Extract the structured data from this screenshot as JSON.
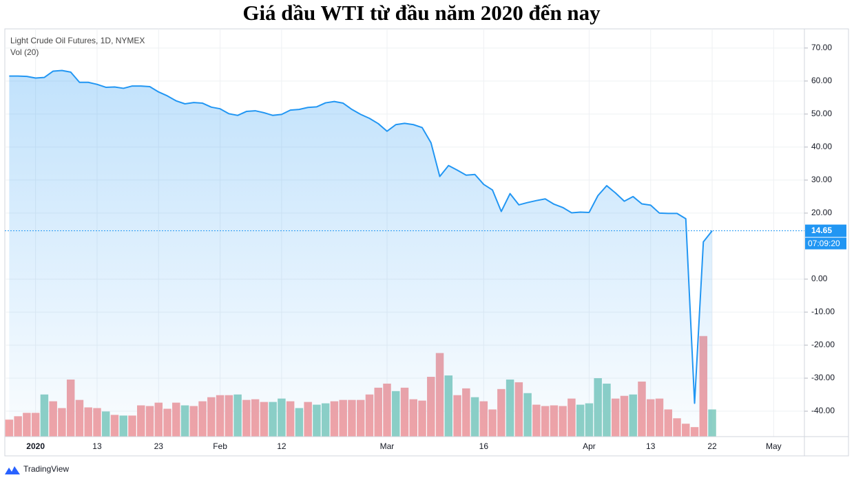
{
  "chart_data": {
    "type": "line",
    "title": "Giá dầu WTI từ đầu năm 2020 đến nay",
    "legend_title": "Light Crude Oil Futures, 1D, NYMEX",
    "volume_label": "Vol (20)",
    "brand": "TradingView",
    "categories": [
      null,
      null,
      null,
      "2020",
      null,
      null,
      null,
      null,
      null,
      null,
      "13",
      null,
      null,
      null,
      null,
      null,
      null,
      "23",
      null,
      null,
      null,
      null,
      null,
      null,
      "Feb",
      null,
      null,
      null,
      null,
      null,
      null,
      "12",
      null,
      null,
      null,
      null,
      null,
      null,
      null,
      null,
      null,
      null,
      null,
      "Mar",
      null,
      null,
      null,
      null,
      null,
      null,
      null,
      null,
      null,
      null,
      "16",
      null,
      null,
      null,
      null,
      null,
      null,
      null,
      null,
      null,
      null,
      null,
      "Apr",
      null,
      null,
      null,
      null,
      null,
      null,
      "13",
      null,
      null,
      null,
      null,
      null,
      null,
      "22",
      null,
      null,
      null,
      null,
      null,
      null,
      "May",
      null,
      null,
      null
    ],
    "series": [
      {
        "name": "Light Crude Oil Futures",
        "color": "#2196f3",
        "values": [
          61.5,
          61.5,
          61.4,
          60.9,
          61.1,
          63.0,
          63.2,
          62.7,
          59.6,
          59.6,
          59.0,
          58.1,
          58.2,
          57.8,
          58.5,
          58.5,
          58.3,
          56.7,
          55.5,
          54.0,
          53.1,
          53.5,
          53.3,
          52.1,
          51.6,
          50.1,
          49.6,
          50.8,
          51.0,
          50.4,
          49.6,
          49.9,
          51.2,
          51.4,
          52.0,
          52.2,
          53.4,
          53.8,
          53.3,
          51.4,
          49.9,
          48.7,
          47.1,
          44.8,
          46.8,
          47.2,
          46.8,
          45.9,
          41.3,
          31.1,
          34.4,
          33.0,
          31.5,
          31.7,
          28.7,
          27.0,
          20.5,
          25.9,
          22.5,
          23.2,
          23.8,
          24.3,
          22.7,
          21.7,
          20.1,
          20.3,
          20.2,
          25.3,
          28.3,
          26.1,
          23.6,
          25.0,
          22.8,
          22.4,
          20.0,
          19.9,
          19.9,
          18.3,
          -37.6,
          11.3,
          14.65,
          null,
          null,
          null,
          null,
          null,
          null,
          null,
          null,
          null,
          null
        ]
      },
      {
        "name": "Vol (20)",
        "axis": "y2",
        "values": [
          25,
          30,
          35,
          35,
          62,
          52,
          42,
          84,
          54,
          43,
          42,
          37,
          32,
          31,
          31,
          46,
          45,
          50,
          41,
          50,
          46,
          45,
          52,
          58,
          61,
          61,
          62,
          54,
          55,
          51,
          51,
          56,
          52,
          42,
          51,
          47,
          49,
          52,
          54,
          54,
          54,
          62,
          72,
          78,
          67,
          72,
          55,
          53,
          88,
          123,
          90,
          61,
          71,
          58,
          52,
          40,
          70,
          84,
          80,
          64,
          47,
          45,
          46,
          45,
          56,
          47,
          49,
          86,
          78,
          56,
          60,
          62,
          81,
          55,
          56,
          40,
          27,
          19,
          14,
          148,
          40,
          null,
          null,
          null,
          null,
          null,
          null,
          null,
          null,
          null,
          null
        ],
        "colors": [
          "#f2a3a6",
          "#f2a3a6",
          "#f2a3a6",
          "#f2a3a6",
          "#8ed0c5",
          "#f2a3a6",
          "#f2a3a6",
          "#f2a3a6",
          "#f2a3a6",
          "#f2a3a6",
          "#f2a3a6",
          "#8ed0c5",
          "#f2a3a6",
          "#8ed0c5",
          "#f2a3a6",
          "#f2a3a6",
          "#f2a3a6",
          "#f2a3a6",
          "#f2a3a6",
          "#f2a3a6",
          "#8ed0c5",
          "#f2a3a6",
          "#f2a3a6",
          "#f2a3a6",
          "#f2a3a6",
          "#f2a3a6",
          "#8ed0c5",
          "#f2a3a6",
          "#f2a3a6",
          "#f2a3a6",
          "#8ed0c5",
          "#8ed0c5",
          "#f2a3a6",
          "#8ed0c5",
          "#f2a3a6",
          "#8ed0c5",
          "#8ed0c5",
          "#f2a3a6",
          "#f2a3a6",
          "#f2a3a6",
          "#f2a3a6",
          "#f2a3a6",
          "#f2a3a6",
          "#f2a3a6",
          "#8ed0c5",
          "#f2a3a6",
          "#f2a3a6",
          "#f2a3a6",
          "#f2a3a6",
          "#f2a3a6",
          "#8ed0c5",
          "#f2a3a6",
          "#f2a3a6",
          "#8ed0c5",
          "#f2a3a6",
          "#f2a3a6",
          "#f2a3a6",
          "#8ed0c5",
          "#f2a3a6",
          "#8ed0c5",
          "#f2a3a6",
          "#f2a3a6",
          "#f2a3a6",
          "#f2a3a6",
          "#f2a3a6",
          "#8ed0c5",
          "#8ed0c5",
          "#8ed0c5",
          "#8ed0c5",
          "#f2a3a6",
          "#f2a3a6",
          "#8ed0c5",
          "#f2a3a6",
          "#f2a3a6",
          "#f2a3a6",
          "#f2a3a6",
          "#f2a3a6",
          "#f2a3a6",
          "#f2a3a6",
          "#f2a3a6",
          "#8ed0c5",
          null,
          null,
          null,
          null,
          null,
          null,
          null,
          null,
          null,
          null
        ]
      }
    ],
    "ylim": [
      -47.7,
      75.8
    ],
    "yticks": [
      {
        "value": 70,
        "label": "70.00"
      },
      {
        "value": 60,
        "label": "60.00"
      },
      {
        "value": 50,
        "label": "50.00"
      },
      {
        "value": 40,
        "label": "40.00"
      },
      {
        "value": 30,
        "label": "30.00"
      },
      {
        "value": 20,
        "label": "20.00"
      },
      {
        "value": 0,
        "label": "0.00"
      },
      {
        "value": -10,
        "label": "-10.00"
      },
      {
        "value": -20,
        "label": "-20.00"
      },
      {
        "value": -30,
        "label": "-30.00"
      },
      {
        "value": -40,
        "label": "-40.00"
      }
    ],
    "y2lim": [
      0,
      600
    ],
    "last_value": 14.65,
    "countdown": "07:09:20",
    "grid": true
  }
}
